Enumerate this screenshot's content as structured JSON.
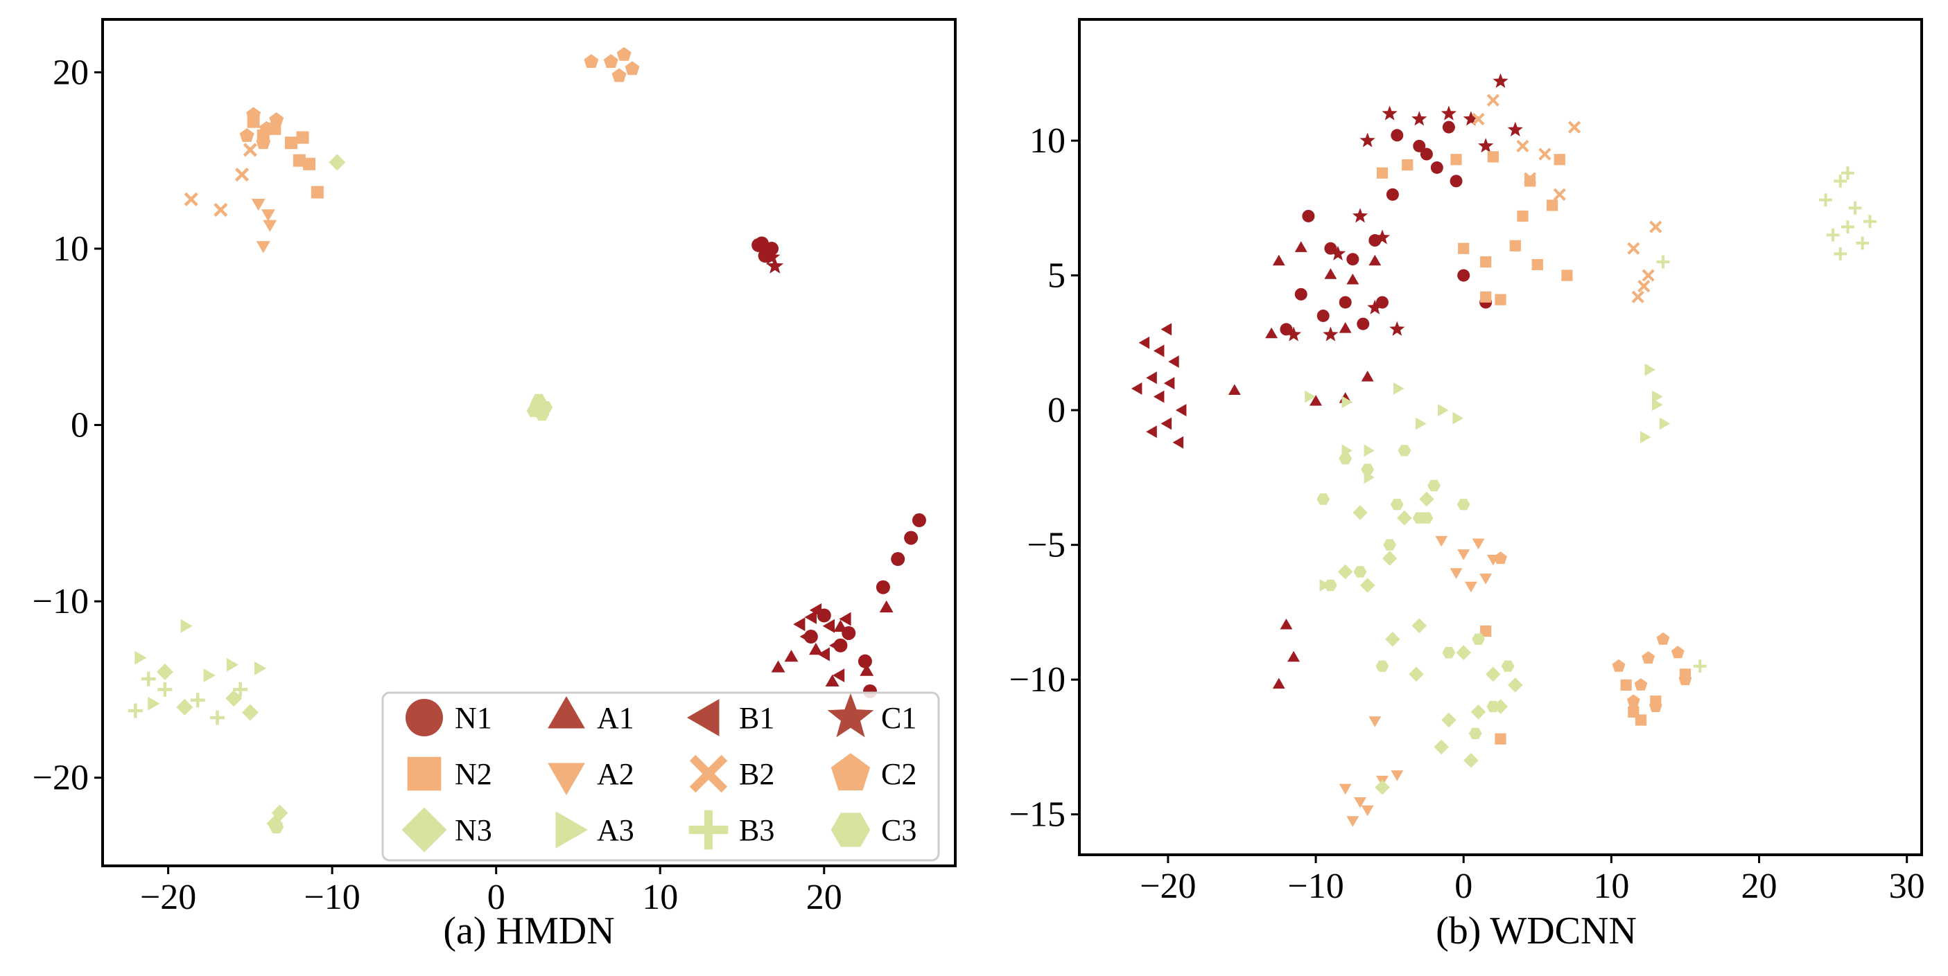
{
  "colors": {
    "dark_red": "#9e1b20",
    "orange": "#f3b07a",
    "light_green": "#d6e4a0",
    "legend_red": "#b14a3c"
  },
  "legend": [
    {
      "label": "N1",
      "class": "N1"
    },
    {
      "label": "A1",
      "class": "A1"
    },
    {
      "label": "B1",
      "class": "B1"
    },
    {
      "label": "C1",
      "class": "C1"
    },
    {
      "label": "N2",
      "class": "N2"
    },
    {
      "label": "A2",
      "class": "A2"
    },
    {
      "label": "B2",
      "class": "B2"
    },
    {
      "label": "C2",
      "class": "C2"
    },
    {
      "label": "N3",
      "class": "N3"
    },
    {
      "label": "A3",
      "class": "A3"
    },
    {
      "label": "B3",
      "class": "B3"
    },
    {
      "label": "C3",
      "class": "C3"
    }
  ],
  "chart_data": [
    {
      "type": "scatter",
      "title": "(a) HMDN",
      "xlabel": "",
      "ylabel": "",
      "xlim": [
        -24,
        28
      ],
      "ylim": [
        -25,
        23
      ],
      "xticks": [
        -20,
        -10,
        0,
        10,
        20
      ],
      "yticks": [
        -20,
        -10,
        0,
        10,
        20
      ],
      "xtick_labels": [
        "−20",
        "−10",
        "0",
        "10",
        "20"
      ],
      "ytick_labels": [
        "−20",
        "−10",
        "0",
        "10",
        "20"
      ],
      "grid": false,
      "legend_position": "lower-right",
      "clusters": [
        {
          "class": "N1",
          "x": [
            16.2,
            16.5,
            16.8,
            16.0,
            16.4,
            21.0,
            22.5,
            23.6,
            24.5,
            25.3,
            25.8,
            20.0,
            21.5,
            22.8,
            19.2
          ],
          "y": [
            10.3,
            9.8,
            10.0,
            10.2,
            9.6,
            -12.5,
            -13.4,
            -9.2,
            -7.6,
            -6.4,
            -5.4,
            -10.8,
            -11.8,
            -15.1,
            -12.0
          ]
        },
        {
          "class": "A1",
          "x": [
            18.0,
            19.5,
            21.0,
            22.6,
            23.8,
            17.2,
            20.5
          ],
          "y": [
            -13.2,
            -12.8,
            -11.5,
            -14.0,
            -10.4,
            -13.8,
            -14.6
          ]
        },
        {
          "class": "B1",
          "x": [
            19.6,
            20.4,
            19.0,
            20.8,
            21.4,
            18.6,
            20.1,
            19.3,
            21.0
          ],
          "y": [
            -10.5,
            -11.4,
            -12.0,
            -12.5,
            -11.0,
            -11.3,
            -13.0,
            -10.9,
            -14.2
          ]
        },
        {
          "class": "C1",
          "x": [
            16.8,
            17.0
          ],
          "y": [
            9.5,
            9.0
          ]
        },
        {
          "class": "N2",
          "x": [
            -14.8,
            -14.2,
            -13.5,
            -12.5,
            -12.0,
            -11.4,
            -11.8,
            -10.9
          ],
          "y": [
            17.2,
            16.4,
            16.8,
            16.0,
            15.0,
            14.8,
            16.3,
            13.2
          ]
        },
        {
          "class": "A2",
          "x": [
            -14.5,
            -13.8,
            -14.2,
            -13.9
          ],
          "y": [
            12.6,
            11.4,
            10.2,
            12.0
          ]
        },
        {
          "class": "B2",
          "x": [
            -18.6,
            -16.8,
            -15.5,
            -15.0
          ],
          "y": [
            12.8,
            12.2,
            14.2,
            15.6
          ]
        },
        {
          "class": "C2",
          "x": [
            -14.8,
            -14.0,
            -13.4,
            -15.2,
            -14.2,
            7.0,
            7.8,
            8.3,
            7.5,
            5.8
          ],
          "y": [
            17.6,
            16.8,
            17.3,
            16.4,
            16.0,
            20.6,
            21.0,
            20.2,
            19.8,
            20.6
          ]
        },
        {
          "class": "N3",
          "x": [
            -20.2,
            -19.0,
            -16.0,
            -15.0,
            -13.2,
            -13.5,
            -9.7
          ],
          "y": [
            -14.0,
            -16.0,
            -15.5,
            -16.3,
            -22.0,
            -22.6,
            14.9
          ]
        },
        {
          "class": "A3",
          "x": [
            -21.8,
            -19.0,
            -17.6,
            -16.2,
            -14.5,
            -21.0
          ],
          "y": [
            -13.2,
            -11.4,
            -14.2,
            -13.6,
            -13.8,
            -15.8
          ]
        },
        {
          "class": "B3",
          "x": [
            -22.0,
            -20.2,
            -18.2,
            -17.0,
            -15.6,
            -21.2
          ],
          "y": [
            -16.2,
            -15.0,
            -15.6,
            -16.6,
            -15.0,
            -14.4
          ]
        },
        {
          "class": "C3",
          "x": [
            2.6,
            3.0,
            2.3,
            2.8,
            2.5,
            -13.4
          ],
          "y": [
            1.4,
            1.0,
            0.8,
            0.6,
            1.2,
            -22.8
          ]
        }
      ]
    },
    {
      "type": "scatter",
      "title": "(b) WDCNN",
      "xlabel": "",
      "ylabel": "",
      "xlim": [
        -26,
        31
      ],
      "ylim": [
        -16.5,
        14.5
      ],
      "xticks": [
        -20,
        -10,
        0,
        10,
        20,
        30
      ],
      "yticks": [
        -15,
        -10,
        -5,
        0,
        5,
        10
      ],
      "xtick_labels": [
        "−20",
        "−10",
        "0",
        "10",
        "20",
        "30"
      ],
      "ytick_labels": [
        "−15",
        "−10",
        "−5",
        "0",
        "5",
        "10"
      ],
      "grid": false,
      "clusters": [
        {
          "class": "N1",
          "x": [
            -4.5,
            -3.0,
            -1.8,
            -1.0,
            -10.5,
            -9.0,
            -7.5,
            -6.0,
            -11.0,
            -8.0,
            -5.5,
            -12.0,
            -9.5,
            -6.8,
            -4.8,
            0.0,
            1.5,
            -0.5,
            -2.5
          ],
          "y": [
            10.2,
            9.8,
            9.0,
            10.5,
            7.2,
            6.0,
            5.6,
            6.3,
            4.3,
            4.0,
            4.0,
            3.0,
            3.5,
            3.2,
            8.0,
            5.0,
            4.0,
            8.5,
            9.5
          ]
        },
        {
          "class": "A1",
          "x": [
            -12.5,
            -11.0,
            -9.0,
            -7.5,
            -6.0,
            -13.0,
            -8.0,
            -15.5,
            -10.0,
            -8.0,
            -6.5,
            -12.0,
            -11.5,
            -12.5
          ],
          "y": [
            5.5,
            6.0,
            5.0,
            4.8,
            5.5,
            2.8,
            3.0,
            0.7,
            0.3,
            0.4,
            1.2,
            -8.0,
            -9.2,
            -10.2
          ]
        },
        {
          "class": "B1",
          "x": [
            -21.5,
            -20.0,
            -19.5,
            -21.0,
            -20.5,
            -19.0,
            -22.0,
            -20.0,
            -19.2,
            -21.0,
            -20.5,
            -19.8
          ],
          "y": [
            2.5,
            3.0,
            1.8,
            1.2,
            0.5,
            0.0,
            0.8,
            -0.5,
            -1.2,
            -0.8,
            2.2,
            1.0
          ]
        },
        {
          "class": "C1",
          "x": [
            -6.5,
            -5.0,
            -3.0,
            -1.0,
            0.5,
            1.5,
            2.5,
            3.5,
            -8.5,
            -7.0,
            -5.5,
            -11.5,
            -9.0,
            -6.0,
            -4.5
          ],
          "y": [
            10.0,
            11.0,
            10.8,
            11.0,
            10.8,
            9.8,
            12.2,
            10.4,
            5.8,
            7.2,
            6.4,
            2.8,
            2.8,
            3.8,
            3.0
          ]
        },
        {
          "class": "N2",
          "x": [
            -5.5,
            -3.8,
            -0.5,
            2.0,
            4.5,
            6.0,
            6.5,
            0.0,
            1.5,
            3.5,
            5.0,
            7.0,
            1.5,
            2.5,
            4.0,
            11.0,
            13.0,
            15.0,
            11.5,
            12.0,
            1.5,
            2.5
          ],
          "y": [
            8.8,
            9.1,
            9.3,
            9.4,
            8.5,
            7.6,
            9.3,
            6.0,
            5.5,
            6.1,
            5.4,
            5.0,
            4.2,
            4.1,
            7.2,
            -10.2,
            -10.8,
            -9.8,
            -11.2,
            -11.5,
            -8.2,
            -12.2
          ]
        },
        {
          "class": "A2",
          "x": [
            -1.5,
            0.0,
            1.0,
            2.0,
            -0.5,
            0.5,
            1.5,
            -8.0,
            -7.0,
            -5.5,
            -7.5,
            -6.5,
            -4.5,
            -6.0
          ],
          "y": [
            -4.8,
            -5.3,
            -4.9,
            -5.5,
            -6.0,
            -6.5,
            -6.2,
            -14.0,
            -14.5,
            -13.7,
            -15.2,
            -14.8,
            -13.5,
            -11.5
          ]
        },
        {
          "class": "B2",
          "x": [
            4.5,
            5.5,
            6.5,
            7.5,
            4.0,
            11.5,
            12.5,
            13.0,
            11.8,
            12.2,
            1.0,
            2.0
          ],
          "y": [
            8.6,
            9.5,
            8.0,
            10.5,
            9.8,
            6.0,
            5.0,
            6.8,
            4.2,
            4.6,
            10.8,
            11.5
          ]
        },
        {
          "class": "C2",
          "x": [
            2.5,
            10.5,
            12.0,
            13.5,
            14.5,
            11.5,
            13.0,
            15.0,
            12.5
          ],
          "y": [
            -5.5,
            -9.5,
            -10.2,
            -8.5,
            -9.0,
            -10.8,
            -11.0,
            -10.0,
            -9.2
          ]
        },
        {
          "class": "N3",
          "x": [
            -4.0,
            -2.5,
            0.0,
            2.0,
            -1.0,
            1.0,
            3.5,
            -3.0,
            -7.0,
            -5.0,
            -8.0,
            -6.5,
            -4.8,
            -3.2,
            -1.5,
            0.5,
            2.5,
            -5.5
          ],
          "y": [
            -4.0,
            -3.3,
            -9.0,
            -9.8,
            -11.5,
            -11.2,
            -10.2,
            -8.0,
            -3.8,
            -5.5,
            -6.0,
            -6.5,
            -8.5,
            -9.8,
            -12.5,
            -13.0,
            -11.0,
            -14.0
          ]
        },
        {
          "class": "A3",
          "x": [
            -10.5,
            -8.0,
            -6.5,
            -4.5,
            -3.0,
            -1.5,
            -0.5,
            -8.0,
            -6.5,
            -9.5,
            12.5,
            13.0,
            13.5,
            12.2,
            13.0
          ],
          "y": [
            0.5,
            0.3,
            -1.5,
            0.8,
            -0.5,
            0.0,
            -0.3,
            -1.5,
            -2.5,
            -6.5,
            1.5,
            0.5,
            -0.5,
            -1.0,
            0.2
          ]
        },
        {
          "class": "B3",
          "x": [
            24.5,
            25.5,
            26.5,
            27.5,
            25.0,
            26.0,
            27.0,
            26.0,
            25.5,
            13.5,
            16.0
          ],
          "y": [
            7.8,
            8.5,
            7.5,
            7.0,
            6.5,
            6.8,
            6.2,
            8.8,
            5.8,
            5.5,
            -9.5
          ]
        },
        {
          "class": "C3",
          "x": [
            -4.0,
            -2.0,
            0.0,
            -6.5,
            -4.5,
            -2.5,
            -9.0,
            -7.0,
            -5.0,
            -3.0,
            -1.0,
            1.0,
            3.0,
            -5.5,
            0.8,
            2.0,
            -9.5,
            -8.0
          ],
          "y": [
            -1.5,
            -2.8,
            -3.5,
            -2.2,
            -3.5,
            -4.0,
            -6.5,
            -6.0,
            -5.0,
            -4.0,
            -9.0,
            -8.5,
            -9.5,
            -9.5,
            -12.0,
            -11.0,
            -3.3,
            -1.8
          ]
        }
      ]
    }
  ]
}
